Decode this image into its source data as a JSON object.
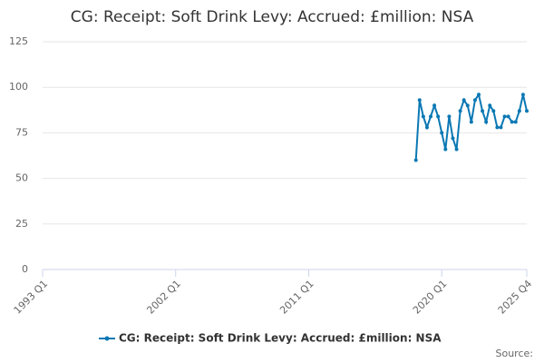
{
  "chart_data": {
    "type": "line",
    "title": "CG: Receipt: Soft Drink Levy: Accrued: £million: NSA",
    "source": "Source:",
    "categories": [
      "1993 Q1",
      null,
      null,
      null,
      null,
      null,
      null,
      null,
      null,
      null,
      null,
      null,
      null,
      null,
      null,
      null,
      null,
      null,
      null,
      null,
      null,
      null,
      null,
      null,
      null,
      null,
      null,
      null,
      null,
      null,
      null,
      null,
      null,
      null,
      null,
      null,
      "2002 Q1",
      null,
      null,
      null,
      null,
      null,
      null,
      null,
      null,
      null,
      null,
      null,
      null,
      null,
      null,
      null,
      null,
      null,
      null,
      null,
      null,
      null,
      null,
      null,
      null,
      null,
      null,
      null,
      null,
      null,
      null,
      null,
      null,
      null,
      null,
      null,
      "2011 Q1",
      null,
      null,
      null,
      null,
      null,
      null,
      null,
      null,
      null,
      null,
      null,
      null,
      null,
      null,
      null,
      null,
      null,
      null,
      null,
      null,
      null,
      null,
      null,
      null,
      null,
      null,
      null,
      null,
      null,
      null,
      null,
      null,
      null,
      null,
      null,
      "2020 Q1",
      null,
      null,
      null,
      null,
      null,
      null,
      null,
      null,
      null,
      null,
      null,
      null,
      null,
      null,
      null,
      null,
      null,
      null,
      null,
      null,
      null,
      null,
      "2025 Q4"
    ],
    "series": [
      {
        "name": "CG: Receipt: Soft Drink Levy: Accrued: £million: NSA",
        "color": "#0b78b4",
        "values": [
          null,
          null,
          null,
          null,
          null,
          null,
          null,
          null,
          null,
          null,
          null,
          null,
          null,
          null,
          null,
          null,
          null,
          null,
          null,
          null,
          null,
          null,
          null,
          null,
          null,
          null,
          null,
          null,
          null,
          null,
          null,
          null,
          null,
          null,
          null,
          null,
          null,
          null,
          null,
          null,
          null,
          null,
          null,
          null,
          null,
          null,
          null,
          null,
          null,
          null,
          null,
          null,
          null,
          null,
          null,
          null,
          null,
          null,
          null,
          null,
          null,
          null,
          null,
          null,
          null,
          null,
          null,
          null,
          null,
          null,
          null,
          null,
          null,
          null,
          null,
          null,
          null,
          null,
          null,
          null,
          null,
          null,
          null,
          null,
          null,
          null,
          null,
          null,
          null,
          null,
          null,
          null,
          null,
          null,
          null,
          null,
          null,
          null,
          null,
          null,
          null,
          60,
          93,
          84,
          78,
          84,
          90,
          84,
          75,
          66,
          84,
          72,
          66,
          87,
          93,
          90,
          81,
          93,
          96,
          87,
          81,
          90,
          87,
          78,
          78,
          84,
          84,
          81,
          81,
          87,
          96,
          87
        ]
      }
    ],
    "ylim": [
      0,
      125
    ],
    "yticks": [
      0,
      25,
      50,
      75,
      100,
      125
    ],
    "grid": true
  }
}
